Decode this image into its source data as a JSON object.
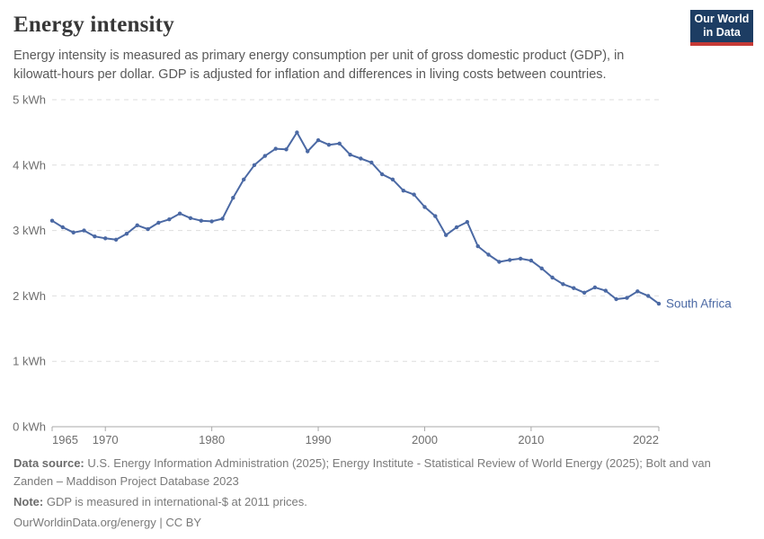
{
  "header": {
    "title": "Energy intensity",
    "subtitle": "Energy intensity is measured as primary energy consumption per unit of gross domestic product (GDP), in kilowatt-hours per dollar. GDP is adjusted for inflation and differences in living costs between countries.",
    "logo": {
      "line1": "Our World",
      "line2": "in Data"
    }
  },
  "chart_data": {
    "type": "line",
    "title": "Energy intensity",
    "unit": "kWh per dollar",
    "xlim": [
      1965,
      2022
    ],
    "ylim": [
      0,
      5
    ],
    "grid": "horizontal-dashed",
    "legend_position": "end-of-line-label",
    "x_ticks": [
      1965,
      1970,
      1980,
      1990,
      2000,
      2010,
      2022
    ],
    "y_ticks": [
      0,
      1,
      2,
      3,
      4,
      5
    ],
    "y_tick_labels": [
      "0 kWh",
      "1 kWh",
      "2 kWh",
      "3 kWh",
      "4 kWh",
      "5 kWh"
    ],
    "series": [
      {
        "name": "South Africa",
        "x": [
          1965,
          1966,
          1967,
          1968,
          1969,
          1970,
          1971,
          1972,
          1973,
          1974,
          1975,
          1976,
          1977,
          1978,
          1979,
          1980,
          1981,
          1982,
          1983,
          1984,
          1985,
          1986,
          1987,
          1988,
          1989,
          1990,
          1991,
          1992,
          1993,
          1994,
          1995,
          1996,
          1997,
          1998,
          1999,
          2000,
          2001,
          2002,
          2003,
          2004,
          2005,
          2006,
          2007,
          2008,
          2009,
          2010,
          2011,
          2012,
          2013,
          2014,
          2015,
          2016,
          2017,
          2018,
          2019,
          2020,
          2021,
          2022
        ],
        "values": [
          3.15,
          3.05,
          2.97,
          3.0,
          2.91,
          2.88,
          2.86,
          2.95,
          3.08,
          3.02,
          3.12,
          3.17,
          3.26,
          3.19,
          3.15,
          3.14,
          3.18,
          3.5,
          3.78,
          4.0,
          4.14,
          4.25,
          4.24,
          4.5,
          4.21,
          4.38,
          4.31,
          4.33,
          4.16,
          4.1,
          4.04,
          3.86,
          3.78,
          3.61,
          3.55,
          3.36,
          3.22,
          2.93,
          3.05,
          3.13,
          2.76,
          2.63,
          2.52,
          2.55,
          2.57,
          2.54,
          2.42,
          2.28,
          2.18,
          2.12,
          2.05,
          2.13,
          2.08,
          1.95,
          1.97,
          2.07,
          2.0,
          1.88
        ]
      }
    ]
  },
  "colors": {
    "series": "#4b69a4",
    "entity_label": "#4b69a4",
    "gridline": "#dedede",
    "axis": "#a8a8a8",
    "tick_label": "#6e6e6e",
    "logo_navy": "#1d3d63",
    "logo_red": "#c63a36"
  },
  "footer": {
    "data_source_label": "Data source:",
    "data_source": "U.S. Energy Information Administration (2025); Energy Institute - Statistical Review of World Energy (2025); Bolt and van Zanden – Maddison Project Database 2023",
    "note_label": "Note:",
    "note": "GDP is measured in international-$ at 2011 prices.",
    "url": "OurWorldinData.org/energy | CC BY"
  }
}
